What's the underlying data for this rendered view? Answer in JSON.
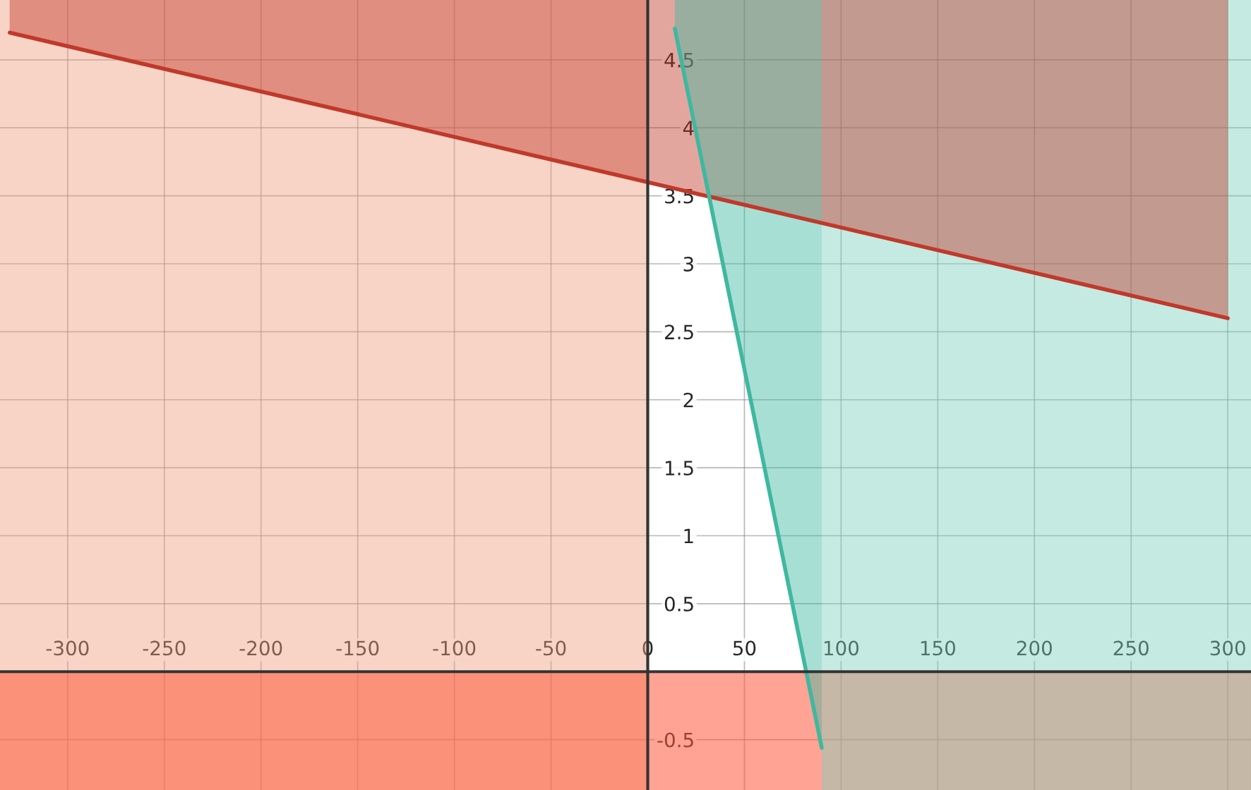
{
  "chart_data": {
    "type": "line",
    "xlim": [
      -335,
      312
    ],
    "ylim": [
      -0.87,
      4.94
    ],
    "xticks": [
      -300,
      -250,
      -200,
      -150,
      -100,
      -50,
      0,
      50,
      100,
      150,
      200,
      250,
      300
    ],
    "yticks": [
      -0.5,
      0.5,
      1,
      1.5,
      2,
      2.5,
      3,
      3.5,
      4,
      4.5
    ],
    "grid": true,
    "series": [
      {
        "color": "#c0392b",
        "x": [
          -330,
          300
        ],
        "values": [
          4.7,
          2.6
        ],
        "lower": [
          4.7,
          2.6
        ],
        "upper": [
          4.94,
          4.94
        ]
      },
      {
        "color": "#3fb8a0",
        "x": [
          14,
          90
        ],
        "values": [
          4.73,
          -0.56
        ],
        "lower": [
          4.73,
          -0.56
        ],
        "upper": [
          4.94,
          4.94
        ]
      }
    ],
    "bands": [
      {
        "axis": "x",
        "from": -335,
        "to": 0,
        "color": "#f0a080"
      },
      {
        "axis": "y",
        "from": -0.87,
        "to": 0,
        "color": "#ff5a3c"
      },
      {
        "axis": "x",
        "from": 90,
        "to": 312,
        "color": "#7fd0bf"
      }
    ]
  }
}
